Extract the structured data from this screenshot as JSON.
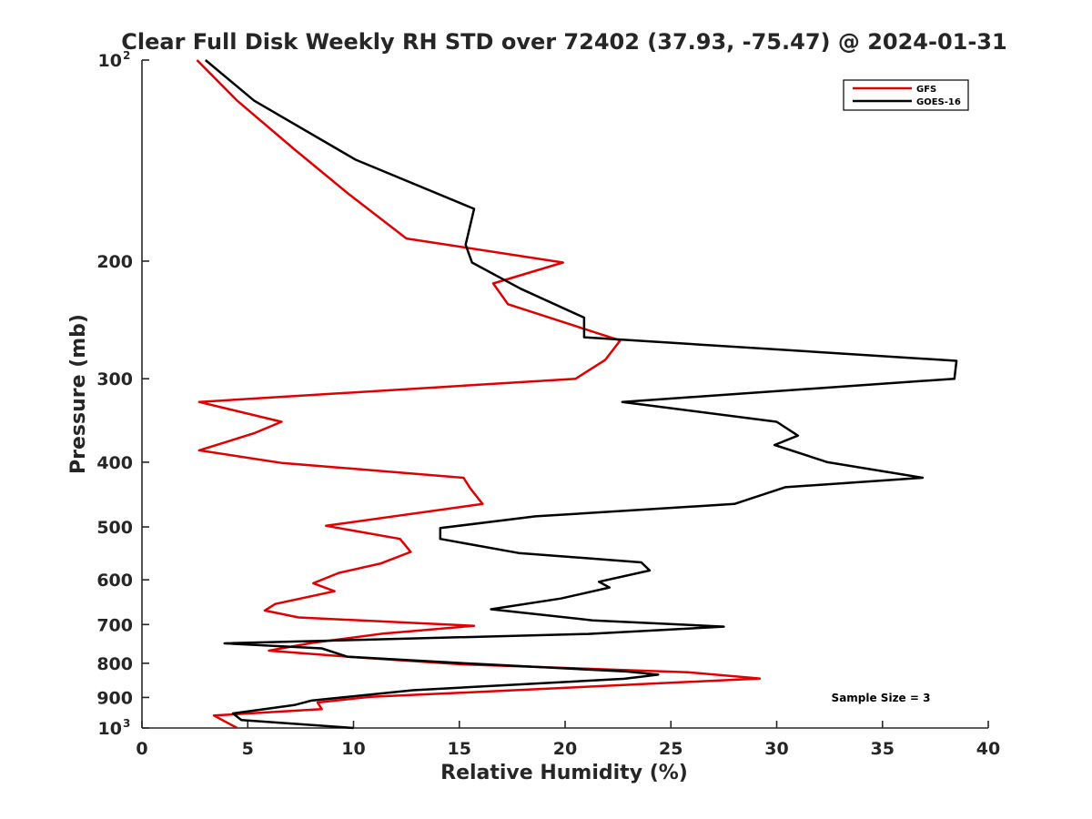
{
  "chart_data": {
    "type": "line",
    "title": "Clear Full Disk Weekly RH STD over 72402 (37.93, -75.47) @ 2024-01-31",
    "xlabel": "Relative Humidity (%)",
    "ylabel": "Pressure (mb)",
    "xlim": [
      0,
      40
    ],
    "ylim": [
      100,
      1000
    ],
    "yscale": "log",
    "y_reversed": true,
    "grid": false,
    "legend_position": "top-right",
    "xticks": [
      0,
      5,
      10,
      15,
      20,
      25,
      30,
      35,
      40
    ],
    "xtick_labels": [
      "0",
      "5",
      "10",
      "15",
      "20",
      "25",
      "30",
      "35",
      "40"
    ],
    "yticks": [
      200,
      300,
      400,
      500,
      600,
      700,
      800,
      900
    ],
    "ytick_labels": [
      "200",
      "300",
      "400",
      "500",
      "600",
      "700",
      "800",
      "900"
    ],
    "yticks_power": [
      {
        "value": 100,
        "base": "10",
        "exp": "2"
      },
      {
        "value": 1000,
        "base": "10",
        "exp": "3"
      }
    ],
    "annotation": "Sample Size = 3",
    "series": [
      {
        "name": "GFS",
        "color": "#e00000",
        "points": [
          [
            2.6,
            100
          ],
          [
            4.5,
            115
          ],
          [
            7.2,
            136
          ],
          [
            9.8,
            159
          ],
          [
            12.5,
            185
          ],
          [
            19.9,
            201
          ],
          [
            16.6,
            216
          ],
          [
            17.3,
            232
          ],
          [
            22.6,
            263
          ],
          [
            21.9,
            281
          ],
          [
            20.5,
            300
          ],
          [
            2.7,
            325
          ],
          [
            6.6,
            348
          ],
          [
            5.3,
            362
          ],
          [
            2.7,
            384
          ],
          [
            6.6,
            401
          ],
          [
            15.2,
            422
          ],
          [
            15.5,
            437
          ],
          [
            16.1,
            462
          ],
          [
            8.7,
            498
          ],
          [
            12.2,
            521
          ],
          [
            12.7,
            545
          ],
          [
            11.3,
            567
          ],
          [
            9.3,
            586
          ],
          [
            8.1,
            607
          ],
          [
            9.1,
            624
          ],
          [
            6.3,
            652
          ],
          [
            5.8,
            667
          ],
          [
            7.4,
            683
          ],
          [
            15.7,
            703
          ],
          [
            11.4,
            722
          ],
          [
            8.0,
            746
          ],
          [
            6.0,
            766
          ],
          [
            9.9,
            783
          ],
          [
            15.2,
            803
          ],
          [
            25.8,
            825
          ],
          [
            29.2,
            843
          ],
          [
            16.0,
            883
          ],
          [
            10.8,
            898
          ],
          [
            8.3,
            916
          ],
          [
            8.5,
            937
          ],
          [
            3.4,
            958
          ],
          [
            4.5,
            1000
          ]
        ]
      },
      {
        "name": "GOES-16",
        "color": "#000000",
        "points": [
          [
            3.0,
            100
          ],
          [
            5.3,
            115
          ],
          [
            10.1,
            141
          ],
          [
            15.7,
            167
          ],
          [
            15.3,
            189
          ],
          [
            15.6,
            201
          ],
          [
            17.9,
            220
          ],
          [
            20.9,
            243
          ],
          [
            20.9,
            260
          ],
          [
            38.5,
            282
          ],
          [
            38.4,
            300
          ],
          [
            22.7,
            325
          ],
          [
            30.0,
            348
          ],
          [
            31.0,
            365
          ],
          [
            29.9,
            377
          ],
          [
            32.4,
            400
          ],
          [
            36.9,
            422
          ],
          [
            30.4,
            436
          ],
          [
            28.0,
            462
          ],
          [
            18.6,
            482
          ],
          [
            14.1,
            502
          ],
          [
            14.1,
            521
          ],
          [
            17.8,
            547
          ],
          [
            23.6,
            565
          ],
          [
            24.0,
            581
          ],
          [
            21.6,
            604
          ],
          [
            22.1,
            616
          ],
          [
            19.8,
            640
          ],
          [
            16.5,
            664
          ],
          [
            21.3,
            690
          ],
          [
            27.5,
            705
          ],
          [
            21.1,
            723
          ],
          [
            3.9,
            747
          ],
          [
            8.5,
            760
          ],
          [
            9.7,
            782
          ],
          [
            15.6,
            801
          ],
          [
            22.9,
            823
          ],
          [
            24.4,
            832
          ],
          [
            22.8,
            844
          ],
          [
            12.8,
            878
          ],
          [
            8.0,
            910
          ],
          [
            7.2,
            924
          ],
          [
            4.3,
            951
          ],
          [
            4.7,
            973
          ],
          [
            10.0,
            1000
          ]
        ]
      }
    ]
  }
}
